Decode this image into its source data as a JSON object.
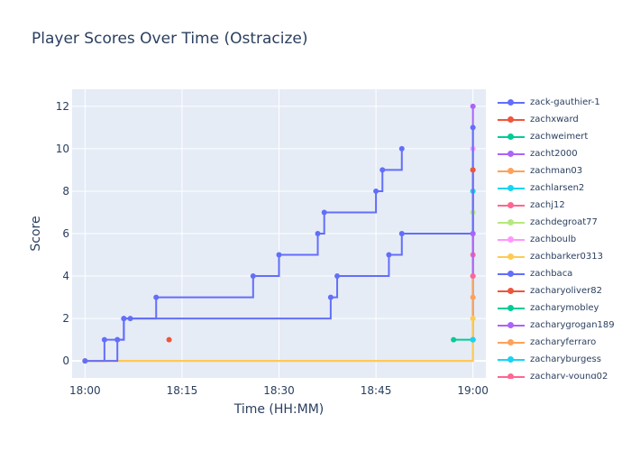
{
  "chart_data": {
    "type": "line",
    "title": "Player Scores Over Time (Ostracize)",
    "xlabel": "Time (HH:MM)",
    "ylabel": "Score",
    "x_ticks": [
      "18:00",
      "18:15",
      "18:30",
      "18:45",
      "19:00"
    ],
    "x_tick_values": [
      0,
      15,
      30,
      45,
      60
    ],
    "xlim": [
      -2,
      62
    ],
    "y_ticks": [
      0,
      2,
      4,
      6,
      8,
      10,
      12
    ],
    "ylim": [
      -0.8,
      12.8
    ],
    "grid": true,
    "legend": "right",
    "series": [
      {
        "name": "zack-gauthier-1",
        "color": "#636efa",
        "x": [
          "18:00",
          "18:03",
          "18:05",
          "18:06",
          "18:07",
          "18:11",
          "18:26",
          "18:30",
          "18:36",
          "18:37",
          "18:45",
          "18:46",
          "18:49"
        ],
        "y": [
          0,
          1,
          1,
          2,
          2,
          3,
          4,
          5,
          6,
          7,
          8,
          9,
          10
        ]
      },
      {
        "name": "zachxward",
        "color": "#ef553b",
        "x": [
          "18:13"
        ],
        "y": [
          1
        ]
      },
      {
        "name": "zachweimert",
        "color": "#00cc96",
        "x": [
          "18:57",
          "19:00",
          "19:00"
        ],
        "y": [
          1,
          1,
          8
        ]
      },
      {
        "name": "zacht2000",
        "color": "#ab63fa",
        "x": [
          "19:00",
          "19:00"
        ],
        "y": [
          1,
          12
        ]
      },
      {
        "name": "zachman03",
        "color": "#ffa15a",
        "x": [
          "18:00",
          "19:00"
        ],
        "y": [
          0,
          9
        ]
      },
      {
        "name": "zachlarsen2",
        "color": "#19d3f3",
        "x": [
          "19:00"
        ],
        "y": [
          8
        ]
      },
      {
        "name": "zachj12",
        "color": "#ff6692",
        "x": [
          "19:00",
          "19:00"
        ],
        "y": [
          5,
          9
        ]
      },
      {
        "name": "zachdegroat77",
        "color": "#b6e880",
        "x": [
          "19:00"
        ],
        "y": [
          7
        ]
      },
      {
        "name": "zachboulb",
        "color": "#ff97ff",
        "x": [
          "19:00"
        ],
        "y": [
          10
        ]
      },
      {
        "name": "zachbarker0313",
        "color": "#fecb52",
        "x": [
          "18:00",
          "19:00"
        ],
        "y": [
          0,
          2
        ]
      },
      {
        "name": "zachbaca",
        "color": "#636efa",
        "x": [
          "18:00",
          "18:05",
          "18:06",
          "18:38",
          "18:39",
          "18:47",
          "18:49",
          "19:00",
          "19:00"
        ],
        "y": [
          0,
          1,
          2,
          3,
          4,
          5,
          6,
          6,
          11
        ]
      },
      {
        "name": "zacharyoliver82",
        "color": "#ef553b",
        "x": [
          "19:00"
        ],
        "y": [
          9
        ]
      },
      {
        "name": "zacharymobley",
        "color": "#00cc96",
        "x": [
          "19:00"
        ],
        "y": [
          1
        ]
      },
      {
        "name": "zacharygrogan189",
        "color": "#ab63fa",
        "x": [
          "19:00",
          "19:00"
        ],
        "y": [
          4,
          6
        ]
      },
      {
        "name": "zacharyferraro",
        "color": "#ffa15a",
        "x": [
          "19:00"
        ],
        "y": [
          3
        ]
      },
      {
        "name": "zacharyburgess",
        "color": "#19d3f3",
        "x": [
          "19:00"
        ],
        "y": [
          1
        ]
      },
      {
        "name": "zachary-young02",
        "color": "#ff6692",
        "x": [
          "19:00"
        ],
        "y": [
          4
        ]
      }
    ]
  }
}
